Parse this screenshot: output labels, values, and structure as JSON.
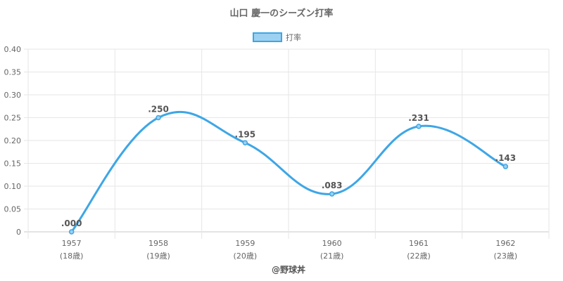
{
  "chart_data": {
    "type": "line",
    "title": "山口 慶一のシーズン打率",
    "categories": [
      "1957",
      "1958",
      "1959",
      "1960",
      "1961",
      "1962"
    ],
    "category_sublabels": [
      "(18歳)",
      "(19歳)",
      "(20歳)",
      "(21歳)",
      "(22歳)",
      "(23歳)"
    ],
    "series": [
      {
        "name": "打率",
        "values": [
          0.0,
          0.25,
          0.195,
          0.083,
          0.231,
          0.143
        ],
        "labels": [
          ".000",
          ".250",
          ".195",
          ".083",
          ".231",
          ".143"
        ]
      }
    ],
    "ylim": [
      0,
      0.4
    ],
    "yticks": [
      "0",
      "0.05",
      "0.10",
      "0.15",
      "0.20",
      "0.25",
      "0.30",
      "0.35",
      "0.40"
    ],
    "grid": true,
    "legend_position": "top",
    "line_color": "#3ea6e6",
    "fill_color": "#9dd1f1"
  },
  "credit": "@野球丼"
}
